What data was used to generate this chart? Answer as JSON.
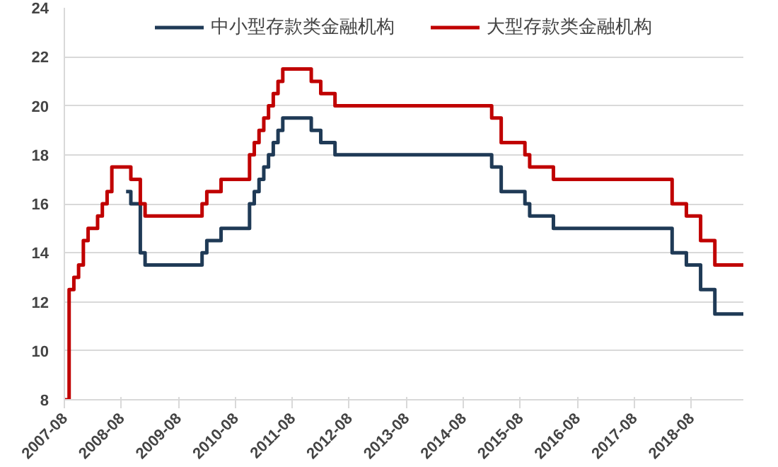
{
  "chart_data": {
    "type": "step",
    "xlim": [
      "2007-08",
      "2019-07"
    ],
    "ylim": [
      8,
      24
    ],
    "yticks": [
      8,
      10,
      12,
      14,
      16,
      18,
      20,
      22,
      24
    ],
    "xticks": [
      "2007-08",
      "2008-08",
      "2009-08",
      "2010-08",
      "2011-08",
      "2012-08",
      "2013-08",
      "2014-08",
      "2015-08",
      "2016-08",
      "2017-08",
      "2018-08"
    ],
    "grid": "y",
    "legend": "top",
    "line_style": "solid",
    "marker": "none",
    "series": [
      {
        "name": "中小型存款类金融机构",
        "color": "#1f3a56",
        "x": [
          "2008-09",
          "2008-10",
          "2008-12",
          "2009-01",
          "2010-01",
          "2010-02",
          "2010-05",
          "2010-11",
          "2010-12",
          "2011-01",
          "2011-02",
          "2011-03",
          "2011-04",
          "2011-05",
          "2011-06",
          "2011-12",
          "2012-02",
          "2012-05",
          "2015-02",
          "2015-04",
          "2015-09",
          "2015-10",
          "2016-03",
          "2018-04",
          "2018-07",
          "2018-10",
          "2019-01",
          "2019-07"
        ],
        "values": [
          16.5,
          16,
          14,
          13.5,
          14,
          14.5,
          15,
          16,
          16.5,
          17,
          17.5,
          18,
          18.5,
          19,
          19.5,
          19,
          18.5,
          18,
          17.5,
          16.5,
          16,
          15.5,
          15,
          14,
          13.5,
          12.5,
          11.5,
          11.5
        ]
      },
      {
        "name": "大型存款类金融机构",
        "color": "#c00000",
        "x": [
          "2007-08",
          "2007-09",
          "2007-10",
          "2007-11",
          "2007-12",
          "2008-01",
          "2008-03",
          "2008-04",
          "2008-05",
          "2008-06",
          "2008-10",
          "2008-12",
          "2009-01",
          "2010-01",
          "2010-02",
          "2010-05",
          "2010-11",
          "2010-12",
          "2011-01",
          "2011-02",
          "2011-03",
          "2011-04",
          "2011-05",
          "2011-06",
          "2011-12",
          "2012-02",
          "2012-05",
          "2015-02",
          "2015-04",
          "2015-09",
          "2015-10",
          "2016-03",
          "2018-04",
          "2018-07",
          "2018-10",
          "2019-01",
          "2019-07"
        ],
        "values": [
          8,
          12.5,
          13,
          13.5,
          14.5,
          15,
          15.5,
          16,
          16.5,
          17.5,
          17,
          16,
          15.5,
          16,
          16.5,
          17,
          18,
          18.5,
          19,
          19.5,
          20,
          20.5,
          21,
          21.5,
          21,
          20.5,
          20,
          19.5,
          18.5,
          18,
          17.5,
          17,
          16,
          15.5,
          14.5,
          13.5,
          13.5
        ]
      }
    ]
  }
}
